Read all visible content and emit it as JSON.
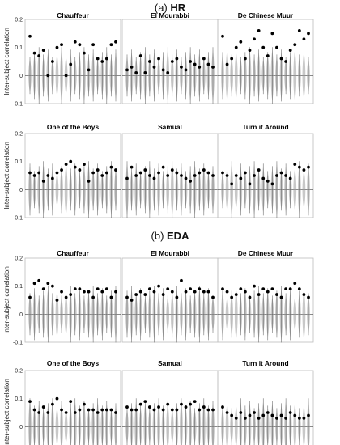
{
  "figure": {
    "section_a": {
      "prefix": "(a) ",
      "label": "HR"
    },
    "section_b": {
      "prefix": "(b) ",
      "label": "EDA"
    }
  },
  "colors": {
    "marker": "#000000",
    "violin": "#9a9a9a",
    "axis": "#444444",
    "frame": "#bdbdbd"
  },
  "chart_data": [
    {
      "type": "scatter",
      "group": "HR",
      "title": "Chauffeur",
      "ylabel": "Inter-subject correlation",
      "ylim": [
        -0.1,
        0.2
      ],
      "yticks": [
        "0.2",
        "0.1",
        "0",
        "-0.1"
      ],
      "x": [
        1,
        2,
        3,
        4,
        5,
        6,
        7,
        8,
        9,
        10,
        11,
        12,
        13,
        14,
        15,
        16,
        17,
        18,
        19,
        20
      ],
      "values": [
        0.14,
        0.08,
        0.07,
        0.09,
        0,
        0.05,
        0.1,
        0.11,
        0,
        0.04,
        0.12,
        0.11,
        0.08,
        0.02,
        0.11,
        0.06,
        0.05,
        0.06,
        0.11,
        0.12
      ]
    },
    {
      "type": "scatter",
      "group": "HR",
      "title": "El Mourabbi",
      "ylabel": "",
      "ylim": [
        -0.1,
        0.2
      ],
      "yticks": [],
      "x": [
        1,
        2,
        3,
        4,
        5,
        6,
        7,
        8,
        9,
        10,
        11,
        12,
        13,
        14,
        15,
        16,
        17,
        18,
        19,
        20
      ],
      "values": [
        0.02,
        0.03,
        0.01,
        0.07,
        0.01,
        0.05,
        0.03,
        0.06,
        0.02,
        0.01,
        0.05,
        0.06,
        0.03,
        0.02,
        0.05,
        0.04,
        0.03,
        0.06,
        0.04,
        0.03
      ]
    },
    {
      "type": "scatter",
      "group": "HR",
      "title": "De Chinese Muur",
      "ylabel": "",
      "ylim": [
        -0.1,
        0.2
      ],
      "yticks": [],
      "x": [
        1,
        2,
        3,
        4,
        5,
        6,
        7,
        8,
        9,
        10,
        11,
        12,
        13,
        14,
        15,
        16,
        17,
        18,
        19,
        20
      ],
      "values": [
        0.14,
        0.04,
        0.06,
        0.1,
        0.12,
        0.06,
        0.09,
        0.13,
        0.16,
        0.1,
        0.07,
        0.15,
        0.1,
        0.06,
        0.05,
        0.09,
        0.11,
        0.16,
        0.13,
        0.15
      ]
    },
    {
      "type": "scatter",
      "group": "HR",
      "title": "One of the Boys",
      "ylabel": "Inter-subject correlation",
      "ylim": [
        -0.1,
        0.2
      ],
      "yticks": [
        "0.2",
        "0.1",
        "0",
        "-0.1"
      ],
      "x": [
        1,
        2,
        3,
        4,
        5,
        6,
        7,
        8,
        9,
        10,
        11,
        12,
        13,
        14,
        15,
        16,
        17,
        18,
        19,
        20
      ],
      "values": [
        0.06,
        0.05,
        0.06,
        0.03,
        0.05,
        0.04,
        0.06,
        0.07,
        0.09,
        0.1,
        0.08,
        0.07,
        0.09,
        0.03,
        0.06,
        0.07,
        0.05,
        0.06,
        0.08,
        0.07
      ]
    },
    {
      "type": "scatter",
      "group": "HR",
      "title": "Samual",
      "ylabel": "",
      "ylim": [
        -0.1,
        0.2
      ],
      "yticks": [],
      "x": [
        1,
        2,
        3,
        4,
        5,
        6,
        7,
        8,
        9,
        10,
        11,
        12,
        13,
        14,
        15,
        16,
        17,
        18,
        19,
        20
      ],
      "values": [
        0.04,
        0.08,
        0.05,
        0.06,
        0.07,
        0.05,
        0.04,
        0.06,
        0.08,
        0.05,
        0.07,
        0.06,
        0.05,
        0.04,
        0.03,
        0.05,
        0.06,
        0.07,
        0.06,
        0.05
      ]
    },
    {
      "type": "scatter",
      "group": "HR",
      "title": "Turn it Around",
      "ylabel": "",
      "ylim": [
        -0.1,
        0.2
      ],
      "yticks": [],
      "x": [
        1,
        2,
        3,
        4,
        5,
        6,
        7,
        8,
        9,
        10,
        11,
        12,
        13,
        14,
        15,
        16,
        17,
        18,
        19,
        20
      ],
      "values": [
        0.06,
        0.05,
        0.02,
        0.05,
        0.04,
        0.06,
        0.02,
        0.05,
        0.07,
        0.04,
        0.03,
        0.02,
        0.05,
        0.06,
        0.05,
        0.04,
        0.09,
        0.08,
        0.07,
        0.08
      ]
    },
    {
      "type": "scatter",
      "group": "EDA",
      "title": "Chauffeur",
      "ylabel": "Inter-subject correlation",
      "ylim": [
        -0.1,
        0.2
      ],
      "yticks": [
        "0.2",
        "0.1",
        "0",
        "-0.1"
      ],
      "x": [
        1,
        2,
        3,
        4,
        5,
        6,
        7,
        8,
        9,
        10,
        11,
        12,
        13,
        14,
        15,
        16,
        17,
        18,
        19,
        20
      ],
      "values": [
        0.06,
        0.11,
        0.12,
        0.09,
        0.11,
        0.1,
        0.05,
        0.08,
        0.06,
        0.07,
        0.09,
        0.09,
        0.08,
        0.08,
        0.06,
        0.09,
        0.08,
        0.09,
        0.06,
        0.08
      ]
    },
    {
      "type": "scatter",
      "group": "EDA",
      "title": "El Mourabbi",
      "ylabel": "",
      "ylim": [
        -0.1,
        0.2
      ],
      "yticks": [],
      "x": [
        1,
        2,
        3,
        4,
        5,
        6,
        7,
        8,
        9,
        10,
        11,
        12,
        13,
        14,
        15,
        16,
        17,
        18,
        19,
        20
      ],
      "values": [
        0.06,
        0.05,
        0.07,
        0.08,
        0.07,
        0.09,
        0.08,
        0.1,
        0.07,
        0.09,
        0.08,
        0.06,
        0.12,
        0.08,
        0.09,
        0.08,
        0.09,
        0.08,
        0.08,
        0.06
      ]
    },
    {
      "type": "scatter",
      "group": "EDA",
      "title": "De Chinese Muur",
      "ylabel": "",
      "ylim": [
        -0.1,
        0.2
      ],
      "yticks": [],
      "x": [
        1,
        2,
        3,
        4,
        5,
        6,
        7,
        8,
        9,
        10,
        11,
        12,
        13,
        14,
        15,
        16,
        17,
        18,
        19,
        20
      ],
      "values": [
        0.09,
        0.08,
        0.06,
        0.07,
        0.09,
        0.08,
        0.06,
        0.1,
        0.07,
        0.09,
        0.08,
        0.09,
        0.07,
        0.06,
        0.09,
        0.09,
        0.11,
        0.09,
        0.07,
        0.06
      ]
    },
    {
      "type": "scatter",
      "group": "EDA",
      "title": "One of the Boys",
      "ylabel": "Inter-subject correlation",
      "ylim": [
        -0.1,
        0.2
      ],
      "yticks": [
        "0.2",
        "0.1",
        "0",
        "-0.1"
      ],
      "x": [
        1,
        2,
        3,
        4,
        5,
        6,
        7,
        8,
        9,
        10,
        11,
        12,
        13,
        14,
        15,
        16,
        17,
        18,
        19,
        20
      ],
      "values": [
        0.09,
        0.06,
        0.05,
        0.07,
        0.05,
        0.08,
        0.1,
        0.06,
        0.05,
        0.09,
        0.05,
        0.06,
        0.08,
        0.06,
        0.06,
        0.05,
        0.06,
        0.06,
        0.06,
        0.05
      ]
    },
    {
      "type": "scatter",
      "group": "EDA",
      "title": "Samual",
      "ylabel": "",
      "ylim": [
        -0.1,
        0.2
      ],
      "yticks": [],
      "x": [
        1,
        2,
        3,
        4,
        5,
        6,
        7,
        8,
        9,
        10,
        11,
        12,
        13,
        14,
        15,
        16,
        17,
        18,
        19,
        20
      ],
      "values": [
        0.07,
        0.06,
        0.06,
        0.08,
        0.09,
        0.07,
        0.06,
        0.07,
        0.06,
        0.08,
        0.06,
        0.06,
        0.08,
        0.07,
        0.08,
        0.09,
        0.06,
        0.07,
        0.06,
        0.06
      ]
    },
    {
      "type": "scatter",
      "group": "EDA",
      "title": "Turn it Around",
      "ylabel": "",
      "ylim": [
        -0.1,
        0.2
      ],
      "yticks": [],
      "x": [
        1,
        2,
        3,
        4,
        5,
        6,
        7,
        8,
        9,
        10,
        11,
        12,
        13,
        14,
        15,
        16,
        17,
        18,
        19,
        20
      ],
      "values": [
        0.07,
        0.05,
        0.04,
        0.03,
        0.05,
        0.03,
        0.04,
        0.05,
        0.03,
        0.04,
        0.05,
        0.04,
        0.03,
        0.04,
        0.03,
        0.05,
        0.04,
        0.03,
        0.03,
        0.04
      ]
    }
  ]
}
